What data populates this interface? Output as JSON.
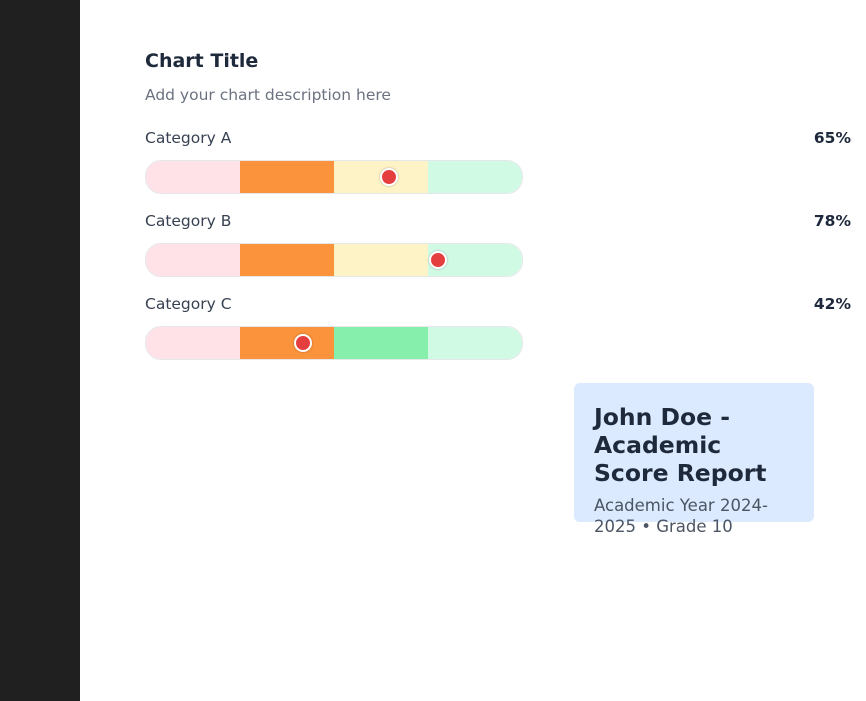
{
  "chart_data": {
    "type": "bullet",
    "title": "Chart Title",
    "subtitle": "Add your chart description here",
    "range": [
      0,
      100
    ],
    "band_colors": [
      "#fee2e7",
      "#fb923c",
      "#fef3c7",
      "#d1fae5"
    ],
    "highlight_band_color": "#86efac",
    "marker_color": "#e53e3e",
    "rows": [
      {
        "label": "Category A",
        "value": 65,
        "value_label": "65%"
      },
      {
        "label": "Category B",
        "value": 78,
        "value_label": "78%"
      },
      {
        "label": "Category C",
        "value": 42,
        "value_label": "42%"
      }
    ]
  },
  "info_card": {
    "title": "John Doe - Academic Score Report",
    "subtitle": "Academic Year 2024-2025 • Grade 10"
  }
}
